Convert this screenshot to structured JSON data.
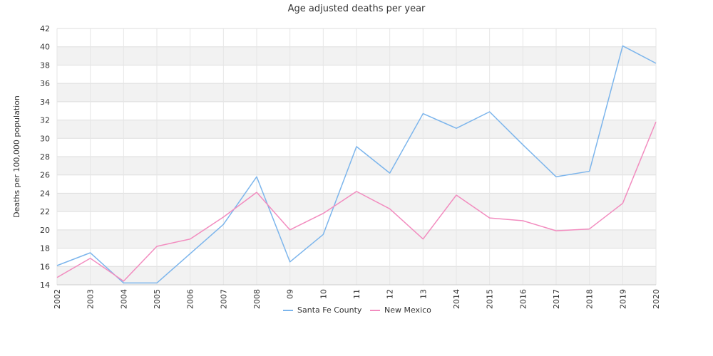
{
  "chart_data": {
    "type": "line",
    "title": "Age adjusted deaths per year",
    "xlabel": "",
    "ylabel": "Deaths per 100,000 population",
    "x": [
      "2002",
      "2003",
      "2004",
      "2005",
      "2006",
      "2007",
      "2008",
      "09",
      "10",
      "11",
      "12",
      "13",
      "2014",
      "2015",
      "2016",
      "2017",
      "2018",
      "2019",
      "2020"
    ],
    "ylim": [
      14,
      42
    ],
    "yticks": [
      14,
      16,
      18,
      20,
      22,
      24,
      26,
      28,
      30,
      32,
      34,
      36,
      38,
      40,
      42
    ],
    "grid": "alternating horizontal bands",
    "legend_position": "bottom-center",
    "series": [
      {
        "name": "Santa Fe County",
        "color": "#7cb5ec",
        "values": [
          16.1,
          17.5,
          14.2,
          14.2,
          17.4,
          20.6,
          25.8,
          16.5,
          19.5,
          29.1,
          26.2,
          32.7,
          31.1,
          32.9,
          29.3,
          25.8,
          26.4,
          40.1,
          38.2
        ]
      },
      {
        "name": "New Mexico",
        "color": "#f28cbf",
        "values": [
          14.8,
          16.9,
          14.4,
          18.2,
          19.0,
          21.4,
          24.1,
          20.0,
          21.8,
          24.2,
          22.3,
          19.0,
          23.8,
          21.3,
          21.0,
          19.9,
          20.1,
          22.9,
          31.8
        ]
      }
    ]
  }
}
